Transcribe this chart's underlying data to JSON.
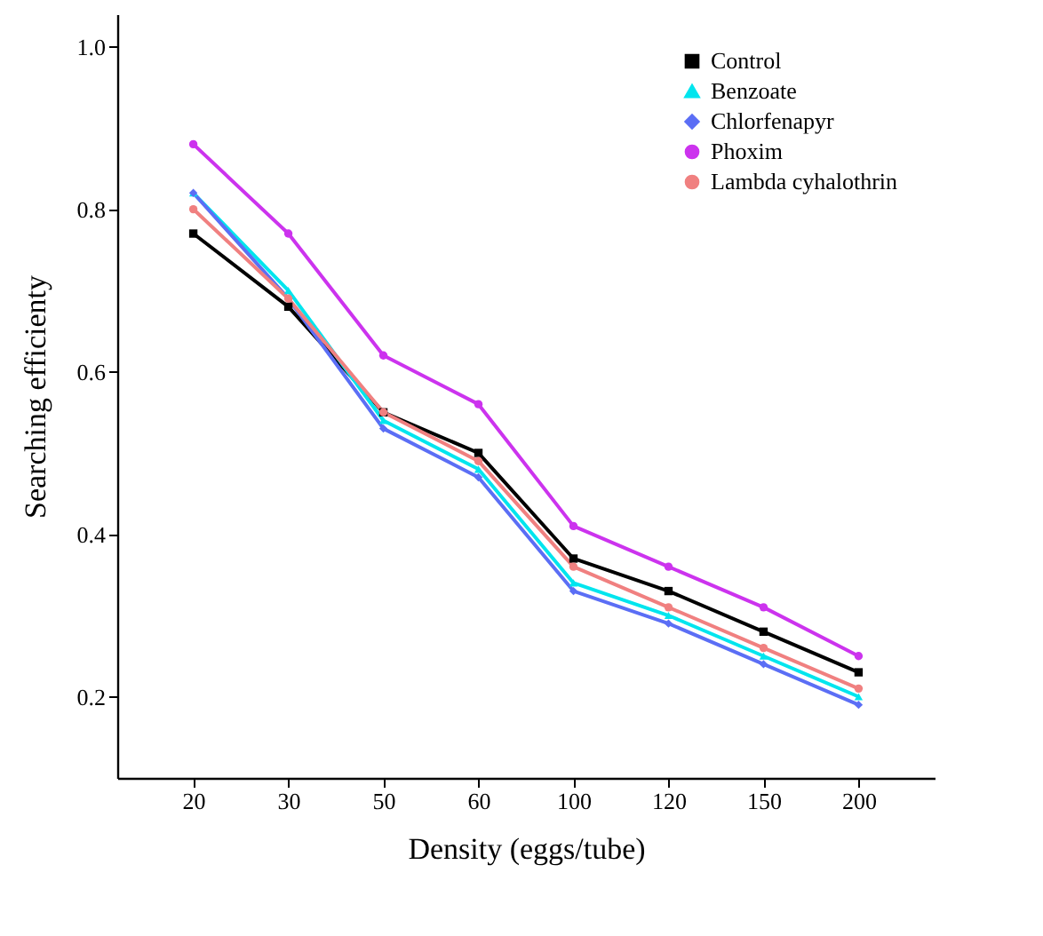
{
  "chart_data": {
    "type": "line",
    "xlabel": "Density (eggs/tube)",
    "ylabel": "Searching efficienty",
    "categories": [
      "20",
      "30",
      "50",
      "60",
      "100",
      "120",
      "150",
      "200"
    ],
    "series": [
      {
        "name": "Control",
        "color": "#000000",
        "marker": "square",
        "values": [
          0.77,
          0.68,
          0.55,
          0.5,
          0.37,
          0.33,
          0.28,
          0.23
        ]
      },
      {
        "name": "Benzoate",
        "color": "#00e5ee",
        "marker": "triangle",
        "values": [
          0.82,
          0.7,
          0.54,
          0.48,
          0.34,
          0.3,
          0.25,
          0.2
        ]
      },
      {
        "name": "Chlorfenapyr",
        "color": "#5b6ef5",
        "marker": "diamond",
        "values": [
          0.82,
          0.69,
          0.53,
          0.47,
          0.33,
          0.29,
          0.24,
          0.19
        ]
      },
      {
        "name": "Phoxim",
        "color": "#cc33ee",
        "marker": "circle",
        "values": [
          0.88,
          0.77,
          0.62,
          0.56,
          0.41,
          0.36,
          0.31,
          0.25
        ]
      },
      {
        "name": "Lambda cyhalothrin",
        "color": "#f08080",
        "marker": "circle",
        "values": [
          0.8,
          0.69,
          0.55,
          0.49,
          0.36,
          0.31,
          0.26,
          0.21
        ]
      }
    ],
    "ylim": [
      0.1,
      1.04
    ],
    "yticks": [
      0.2,
      0.4,
      0.6,
      0.8,
      {
        "value": 1,
        "label": "1.0"
      }
    ],
    "legend": "top right",
    "line_style": "solid"
  }
}
